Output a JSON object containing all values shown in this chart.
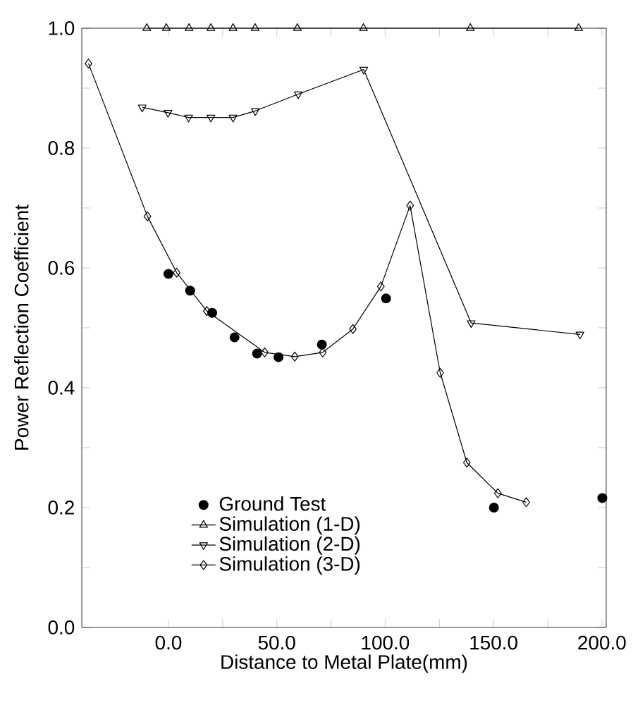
{
  "chart_data": {
    "type": "line",
    "xlabel": "Distance to Metal Plate(mm)",
    "ylabel": "Power Reflection Coefficient",
    "xlim": [
      -40,
      202
    ],
    "ylim": [
      0,
      1
    ],
    "xticks": [
      {
        "value": 0,
        "label": "0.0"
      },
      {
        "value": 25,
        "label": null
      },
      {
        "value": 50,
        "label": "50.0"
      },
      {
        "value": 75,
        "label": null
      },
      {
        "value": 100,
        "label": "100.0"
      },
      {
        "value": 125,
        "label": null
      },
      {
        "value": 150,
        "label": "150.0"
      },
      {
        "value": 175,
        "label": null
      },
      {
        "value": 200,
        "label": "200.0"
      }
    ],
    "yticks": [
      {
        "value": 0,
        "label": "0.0"
      },
      {
        "value": 0.1,
        "label": null
      },
      {
        "value": 0.2,
        "label": "0.2"
      },
      {
        "value": 0.3,
        "label": null
      },
      {
        "value": 0.4,
        "label": "0.4"
      },
      {
        "value": 0.5,
        "label": null
      },
      {
        "value": 0.6,
        "label": "0.6"
      },
      {
        "value": 0.7,
        "label": null
      },
      {
        "value": 0.8,
        "label": "0.8"
      },
      {
        "value": 0.9,
        "label": null
      },
      {
        "value": 1.0,
        "label": "1.0"
      }
    ],
    "legend": "bottom left",
    "series": [
      {
        "name": "Ground Test",
        "type": "scatter",
        "marker": "circle",
        "color": "#000000",
        "x": [
          0,
          10,
          20.2,
          30.5,
          40.9,
          50.8,
          70.8,
          100.4,
          150.2,
          200.2
        ],
        "values": [
          0.59,
          0.562,
          0.525,
          0.484,
          0.457,
          0.451,
          0.472,
          0.549,
          0.2,
          0.216
        ]
      },
      {
        "name": "Simulation (1-D)",
        "marker": "triangle",
        "color": "#000000",
        "x": [
          -10,
          -1,
          9.5,
          19.6,
          29.8,
          40,
          59.5,
          90,
          139.3,
          189.3
        ],
        "values": [
          1.0,
          1.0,
          1.0,
          1.0,
          1.0,
          1.0,
          1.0,
          1.0,
          1.0,
          1.0
        ]
      },
      {
        "name": "Simulation (2-D)",
        "marker": "triangle-down",
        "color": "#000000",
        "x": [
          -12.1,
          -0.2,
          9.3,
          19.6,
          29.8,
          40.1,
          59.9,
          90.1,
          139.7,
          189.9
        ],
        "values": [
          0.868,
          0.859,
          0.851,
          0.851,
          0.851,
          0.862,
          0.89,
          0.931,
          0.508,
          0.489
        ]
      },
      {
        "name": "Simulation (3-D)",
        "marker": "diamond",
        "color": "#000000",
        "x": [
          -36.9,
          -9.7,
          3.8,
          17.7,
          44.4,
          58.3,
          71.2,
          85.1,
          98,
          111.5,
          125.4,
          137.7,
          152,
          165.1
        ],
        "values": [
          0.941,
          0.686,
          0.592,
          0.528,
          0.459,
          0.452,
          0.459,
          0.498,
          0.569,
          0.704,
          0.425,
          0.275,
          0.224,
          0.209
        ]
      }
    ]
  }
}
